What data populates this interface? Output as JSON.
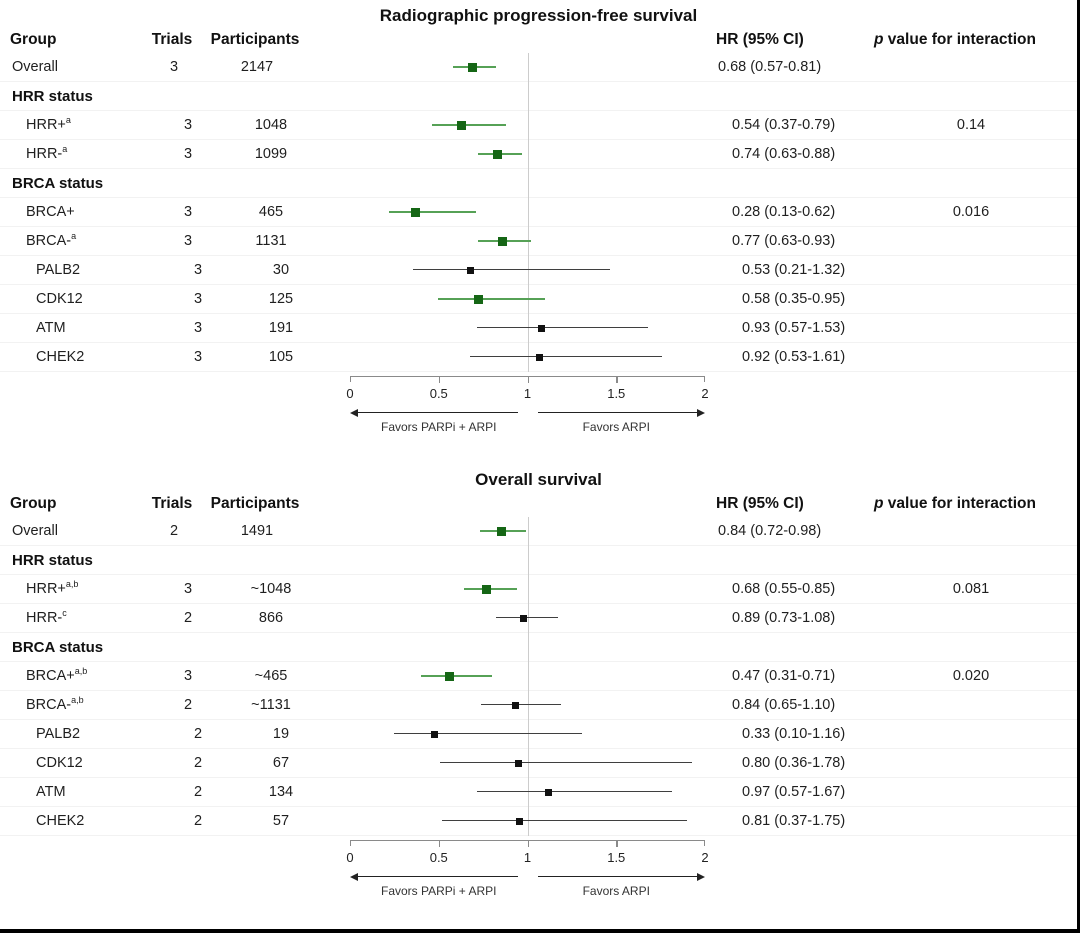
{
  "columns": {
    "group": "Group",
    "trials": "Trials",
    "participants": "Participants",
    "hr": "HR (95% CI)",
    "p_italic": "p",
    "p_rest": " value for interaction"
  },
  "axis": {
    "min": 0,
    "max": 2,
    "ticks": [
      0,
      0.5,
      1,
      1.5,
      2
    ],
    "tick_labels": [
      "0",
      "0.5",
      "1",
      "1.5",
      "2"
    ],
    "reference_line": 1,
    "left_arrow_label": "Favors PARPi + ARPI",
    "right_arrow_label": "Favors ARPI"
  },
  "colors": {
    "significant_square": "#156615",
    "significant_line": "#56a156",
    "nonsignificant_square": "#111111",
    "nonsignificant_line": "#3f3f3f",
    "reference_line": "#cccccc"
  },
  "chart_data": [
    {
      "type": "forest",
      "title": "Radiographic progression-free survival",
      "rows": [
        {
          "kind": "data",
          "group": "Overall",
          "sup": "",
          "indent": 0,
          "trials": "3",
          "participants": "2147",
          "hr": 0.68,
          "ci_low": 0.57,
          "ci_high": 0.81,
          "hr_text": "0.68 (0.57-0.81)",
          "p": "",
          "color": "green"
        },
        {
          "kind": "section",
          "group": "HRR status"
        },
        {
          "kind": "data",
          "group": "HRR+",
          "sup": "a",
          "indent": 1,
          "trials": "3",
          "participants": "1048",
          "hr": 0.54,
          "ci_low": 0.37,
          "ci_high": 0.79,
          "hr_text": "0.54 (0.37-0.79)",
          "p": "0.14",
          "color": "green"
        },
        {
          "kind": "data",
          "group": "HRR-",
          "sup": "a",
          "indent": 1,
          "trials": "3",
          "participants": "1099",
          "hr": 0.74,
          "ci_low": 0.63,
          "ci_high": 0.88,
          "hr_text": "0.74 (0.63-0.88)",
          "p": "",
          "color": "green"
        },
        {
          "kind": "section",
          "group": "BRCA status"
        },
        {
          "kind": "data",
          "group": "BRCA+",
          "sup": "",
          "indent": 1,
          "trials": "3",
          "participants": "465",
          "hr": 0.28,
          "ci_low": 0.13,
          "ci_high": 0.62,
          "hr_text": "0.28 (0.13-0.62)",
          "p": "0.016",
          "color": "green"
        },
        {
          "kind": "data",
          "group": "BRCA-",
          "sup": "a",
          "indent": 1,
          "trials": "3",
          "participants": "1131",
          "hr": 0.77,
          "ci_low": 0.63,
          "ci_high": 0.93,
          "hr_text": "0.77 (0.63-0.93)",
          "p": "",
          "color": "green"
        },
        {
          "kind": "data",
          "group": "PALB2",
          "sup": "",
          "indent": 2,
          "trials": "3",
          "participants": "30",
          "hr": 0.53,
          "ci_low": 0.21,
          "ci_high": 1.32,
          "hr_text": "0.53 (0.21-1.32)",
          "p": "",
          "color": "black"
        },
        {
          "kind": "data",
          "group": "CDK12",
          "sup": "",
          "indent": 2,
          "trials": "3",
          "participants": "125",
          "hr": 0.58,
          "ci_low": 0.35,
          "ci_high": 0.95,
          "hr_text": "0.58 (0.35-0.95)",
          "p": "",
          "color": "green"
        },
        {
          "kind": "data",
          "group": "ATM",
          "sup": "",
          "indent": 2,
          "trials": "3",
          "participants": "191",
          "hr": 0.93,
          "ci_low": 0.57,
          "ci_high": 1.53,
          "hr_text": "0.93 (0.57-1.53)",
          "p": "",
          "color": "black"
        },
        {
          "kind": "data",
          "group": "CHEK2",
          "sup": "",
          "indent": 2,
          "trials": "3",
          "participants": "105",
          "hr": 0.92,
          "ci_low": 0.53,
          "ci_high": 1.61,
          "hr_text": "0.92 (0.53-1.61)",
          "p": "",
          "color": "black"
        }
      ]
    },
    {
      "type": "forest",
      "title": "Overall survival",
      "rows": [
        {
          "kind": "data",
          "group": "Overall",
          "sup": "",
          "indent": 0,
          "trials": "2",
          "participants": "1491",
          "hr": 0.84,
          "ci_low": 0.72,
          "ci_high": 0.98,
          "hr_text": "0.84 (0.72-0.98)",
          "p": "",
          "color": "green"
        },
        {
          "kind": "section",
          "group": "HRR status"
        },
        {
          "kind": "data",
          "group": "HRR+",
          "sup": "a,b",
          "indent": 1,
          "trials": "3",
          "participants": "~1048",
          "hr": 0.68,
          "ci_low": 0.55,
          "ci_high": 0.85,
          "hr_text": "0.68 (0.55-0.85)",
          "p": "0.081",
          "color": "green"
        },
        {
          "kind": "data",
          "group": "HRR-",
          "sup": "c",
          "indent": 1,
          "trials": "2",
          "participants": "866",
          "hr": 0.89,
          "ci_low": 0.73,
          "ci_high": 1.08,
          "hr_text": "0.89 (0.73-1.08)",
          "p": "",
          "color": "black"
        },
        {
          "kind": "section",
          "group": "BRCA status"
        },
        {
          "kind": "data",
          "group": "BRCA+",
          "sup": "a,b",
          "indent": 1,
          "trials": "3",
          "participants": "~465",
          "hr": 0.47,
          "ci_low": 0.31,
          "ci_high": 0.71,
          "hr_text": "0.47 (0.31-0.71)",
          "p": "0.020",
          "color": "green"
        },
        {
          "kind": "data",
          "group": "BRCA-",
          "sup": "a,b",
          "indent": 1,
          "trials": "2",
          "participants": "~1131",
          "hr": 0.84,
          "ci_low": 0.65,
          "ci_high": 1.1,
          "hr_text": "0.84 (0.65-1.10)",
          "p": "",
          "color": "black"
        },
        {
          "kind": "data",
          "group": "PALB2",
          "sup": "",
          "indent": 2,
          "trials": "2",
          "participants": "19",
          "hr": 0.33,
          "ci_low": 0.1,
          "ci_high": 1.16,
          "hr_text": "0.33 (0.10-1.16)",
          "p": "",
          "color": "black"
        },
        {
          "kind": "data",
          "group": "CDK12",
          "sup": "",
          "indent": 2,
          "trials": "2",
          "participants": "67",
          "hr": 0.8,
          "ci_low": 0.36,
          "ci_high": 1.78,
          "hr_text": "0.80 (0.36-1.78)",
          "p": "",
          "color": "black"
        },
        {
          "kind": "data",
          "group": "ATM",
          "sup": "",
          "indent": 2,
          "trials": "2",
          "participants": "134",
          "hr": 0.97,
          "ci_low": 0.57,
          "ci_high": 1.67,
          "hr_text": "0.97 (0.57-1.67)",
          "p": "",
          "color": "black"
        },
        {
          "kind": "data",
          "group": "CHEK2",
          "sup": "",
          "indent": 2,
          "trials": "2",
          "participants": "57",
          "hr": 0.81,
          "ci_low": 0.37,
          "ci_high": 1.75,
          "hr_text": "0.81 (0.37-1.75)",
          "p": "",
          "color": "black"
        }
      ]
    }
  ]
}
